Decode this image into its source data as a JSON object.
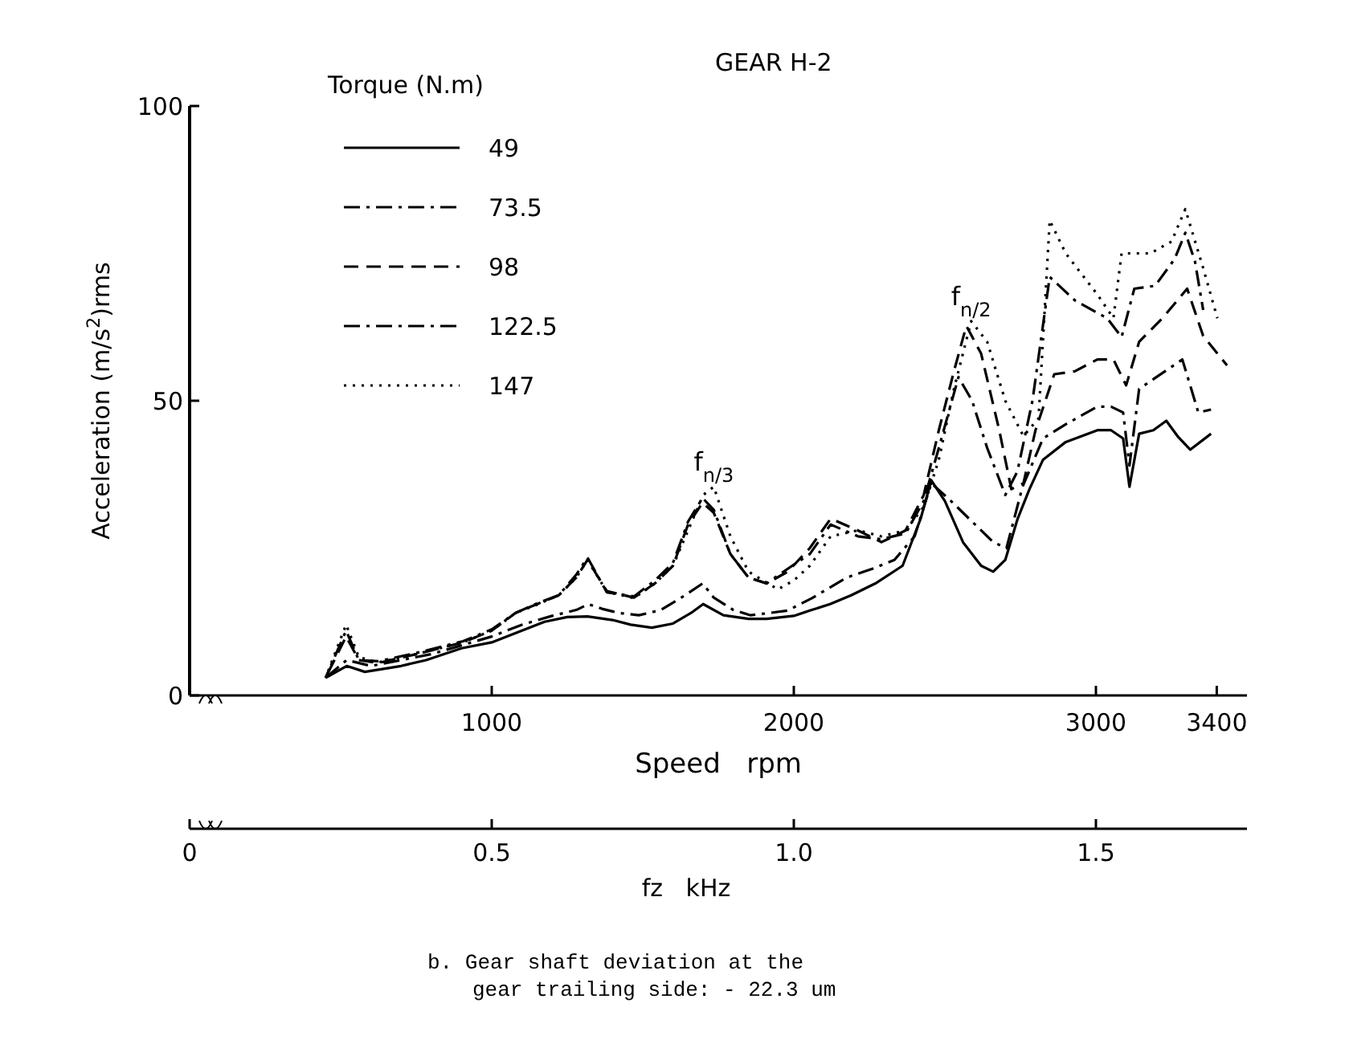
{
  "chart_data": {
    "type": "line",
    "title": "GEAR H-2",
    "legend_title": "Torque (N.m)",
    "xlabel": "Speed   rpm",
    "ylabel": "Acceleration (m/s$^{2}$)rms",
    "x2label": "fz   kHz",
    "xlim": [
      0,
      3500
    ],
    "xticks": [
      1000,
      2000,
      3000,
      3400
    ],
    "x2lim": [
      0,
      1.75
    ],
    "x2ticks": [
      0,
      0.5,
      {
        "value": 1,
        "label": "1.0"
      },
      1.5
    ],
    "ylim": [
      0,
      100
    ],
    "yticks": [
      0,
      50,
      100
    ],
    "legend": "top left",
    "grid": false,
    "series": [
      {
        "name": "49",
        "color": "#000000",
        "line_style": "solid",
        "x": [
          450,
          520,
          580,
          700,
          783,
          900,
          1000,
          1100,
          1175,
          1250,
          1317,
          1400,
          1460,
          1530,
          1600,
          1660,
          1700,
          1767,
          1850,
          1910,
          2000,
          2053,
          2120,
          2190,
          2270,
          2360,
          2420,
          2455,
          2500,
          2560,
          2620,
          2660,
          2700,
          2741,
          2780,
          2825,
          2900,
          3005,
          3050,
          3090,
          3111,
          3143,
          3190,
          3233,
          3270,
          3312,
          3381
        ],
        "values": [
          3,
          5,
          4,
          5,
          6,
          8,
          9,
          11,
          12.5,
          13.3,
          13.4,
          12.8,
          12,
          11.5,
          12.2,
          14,
          15.5,
          13.6,
          13,
          13,
          13.5,
          14.4,
          15.5,
          17,
          19,
          22,
          30,
          36.5,
          33,
          26,
          22,
          21,
          23,
          30,
          35,
          40,
          43,
          45,
          45,
          43.6,
          35.4,
          44.4,
          45,
          46.6,
          44,
          41.7,
          44.4
        ]
      },
      {
        "name": "73.5",
        "color": "#000000",
        "line_style": "dashdot",
        "x": [
          450,
          520,
          600,
          700,
          800,
          900,
          1000,
          1100,
          1200,
          1280,
          1320,
          1365,
          1420,
          1487,
          1560,
          1640,
          1698,
          1735,
          1800,
          1857,
          1920,
          1979,
          2060,
          2175,
          2260,
          2333,
          2400,
          2455,
          2520,
          2600,
          2660,
          2704,
          2757,
          2825,
          2900,
          3005,
          3050,
          3090,
          3111,
          3143,
          3200,
          3286,
          3312,
          3339,
          3381
        ],
        "values": [
          3,
          6,
          5,
          6,
          7,
          8.5,
          10,
          12,
          13.5,
          14.5,
          15.5,
          14.7,
          14,
          13.6,
          14.5,
          17,
          19,
          16.6,
          14.5,
          13.6,
          14,
          14.4,
          16.5,
          20,
          21.5,
          23,
          27,
          36,
          33,
          29,
          26,
          25,
          35.4,
          43.6,
          46,
          49,
          49,
          48,
          39,
          52,
          54,
          57,
          52.6,
          48,
          48.5
        ]
      },
      {
        "name": "98",
        "color": "#000000",
        "line_style": "dashed",
        "x": [
          450,
          518,
          560,
          624,
          750,
          905,
          1000,
          1079,
          1150,
          1222,
          1280,
          1317,
          1381,
          1471,
          1540,
          1600,
          1650,
          1698,
          1735,
          1790,
          1850,
          1910,
          1980,
          2053,
          2122,
          2212,
          2290,
          2370,
          2430,
          2480,
          2530,
          2571,
          2620,
          2680,
          2720,
          2760,
          2800,
          2862,
          2930,
          3005,
          3058,
          3100,
          3143,
          3220,
          3302,
          3355,
          3434
        ],
        "values": [
          3,
          10,
          6,
          5.5,
          7,
          9,
          11,
          14,
          15.5,
          17,
          20,
          23,
          17.7,
          16.6,
          19,
          22,
          29,
          32.7,
          31,
          24,
          20,
          19,
          21,
          25,
          30,
          28,
          26,
          28,
          34,
          45,
          55,
          62.7,
          58,
          45,
          35,
          36,
          45,
          54.5,
          55,
          57,
          57,
          52.6,
          60,
          64,
          69,
          61,
          56
        ]
      },
      {
        "name": "122.5",
        "color": "#000000",
        "line_style": "dashdot",
        "x": [
          450,
          518,
          560,
          624,
          750,
          905,
          1000,
          1079,
          1150,
          1222,
          1280,
          1317,
          1381,
          1471,
          1540,
          1600,
          1650,
          1698,
          1735,
          1790,
          1850,
          1910,
          1980,
          2053,
          2122,
          2212,
          2290,
          2370,
          2430,
          2480,
          2545,
          2590,
          2640,
          2700,
          2740,
          2790,
          2847,
          2931,
          3037,
          3085,
          3127,
          3196,
          3260,
          3296,
          3328,
          3355
        ],
        "values": [
          3,
          11,
          6,
          5.8,
          7.2,
          9.2,
          11.2,
          14,
          15.6,
          17,
          20.5,
          23.4,
          17.5,
          16.8,
          19.5,
          22.5,
          29.5,
          33.5,
          31.5,
          24,
          20,
          19,
          21.5,
          24,
          29,
          27,
          26.5,
          27.5,
          33,
          42,
          54,
          50,
          42,
          34,
          38,
          50,
          71,
          67,
          64,
          60.8,
          69,
          69.5,
          74,
          78.5,
          73.6,
          65.4
        ]
      },
      {
        "name": "147",
        "color": "#000000",
        "line_style": "dotted",
        "x": [
          450,
          518,
          560,
          624,
          750,
          905,
          1000,
          1079,
          1150,
          1222,
          1280,
          1317,
          1381,
          1471,
          1540,
          1600,
          1650,
          1700,
          1735,
          1790,
          1850,
          1947,
          2000,
          2053,
          2122,
          2212,
          2290,
          2370,
          2430,
          2480,
          2530,
          2587,
          2640,
          2700,
          2760,
          2810,
          2830,
          2847,
          2900,
          3005,
          3058,
          3085,
          3180,
          3250,
          3296,
          3355,
          3402
        ],
        "values": [
          3,
          12,
          6.5,
          5.6,
          7,
          9,
          11,
          14,
          15.4,
          17,
          20,
          23,
          17.6,
          16.5,
          19,
          22,
          28,
          34,
          35.4,
          27,
          21,
          18,
          19.5,
          22,
          27,
          28,
          27,
          28,
          32,
          40,
          52,
          63.5,
          60,
          50,
          44,
          47,
          65,
          80.6,
          75,
          68,
          64,
          75,
          75,
          77,
          82.5,
          72.5,
          64
        ]
      }
    ],
    "annotations": [
      {
        "text": "f$_{n/3}$",
        "x": 1735,
        "y": 35.4
      },
      {
        "text": "f$_{n/2}$",
        "x": 2587,
        "y": 63.5
      },
      "b. Gear shaft deviation at the\ngear trailing side: - 22.3 um"
    ]
  }
}
